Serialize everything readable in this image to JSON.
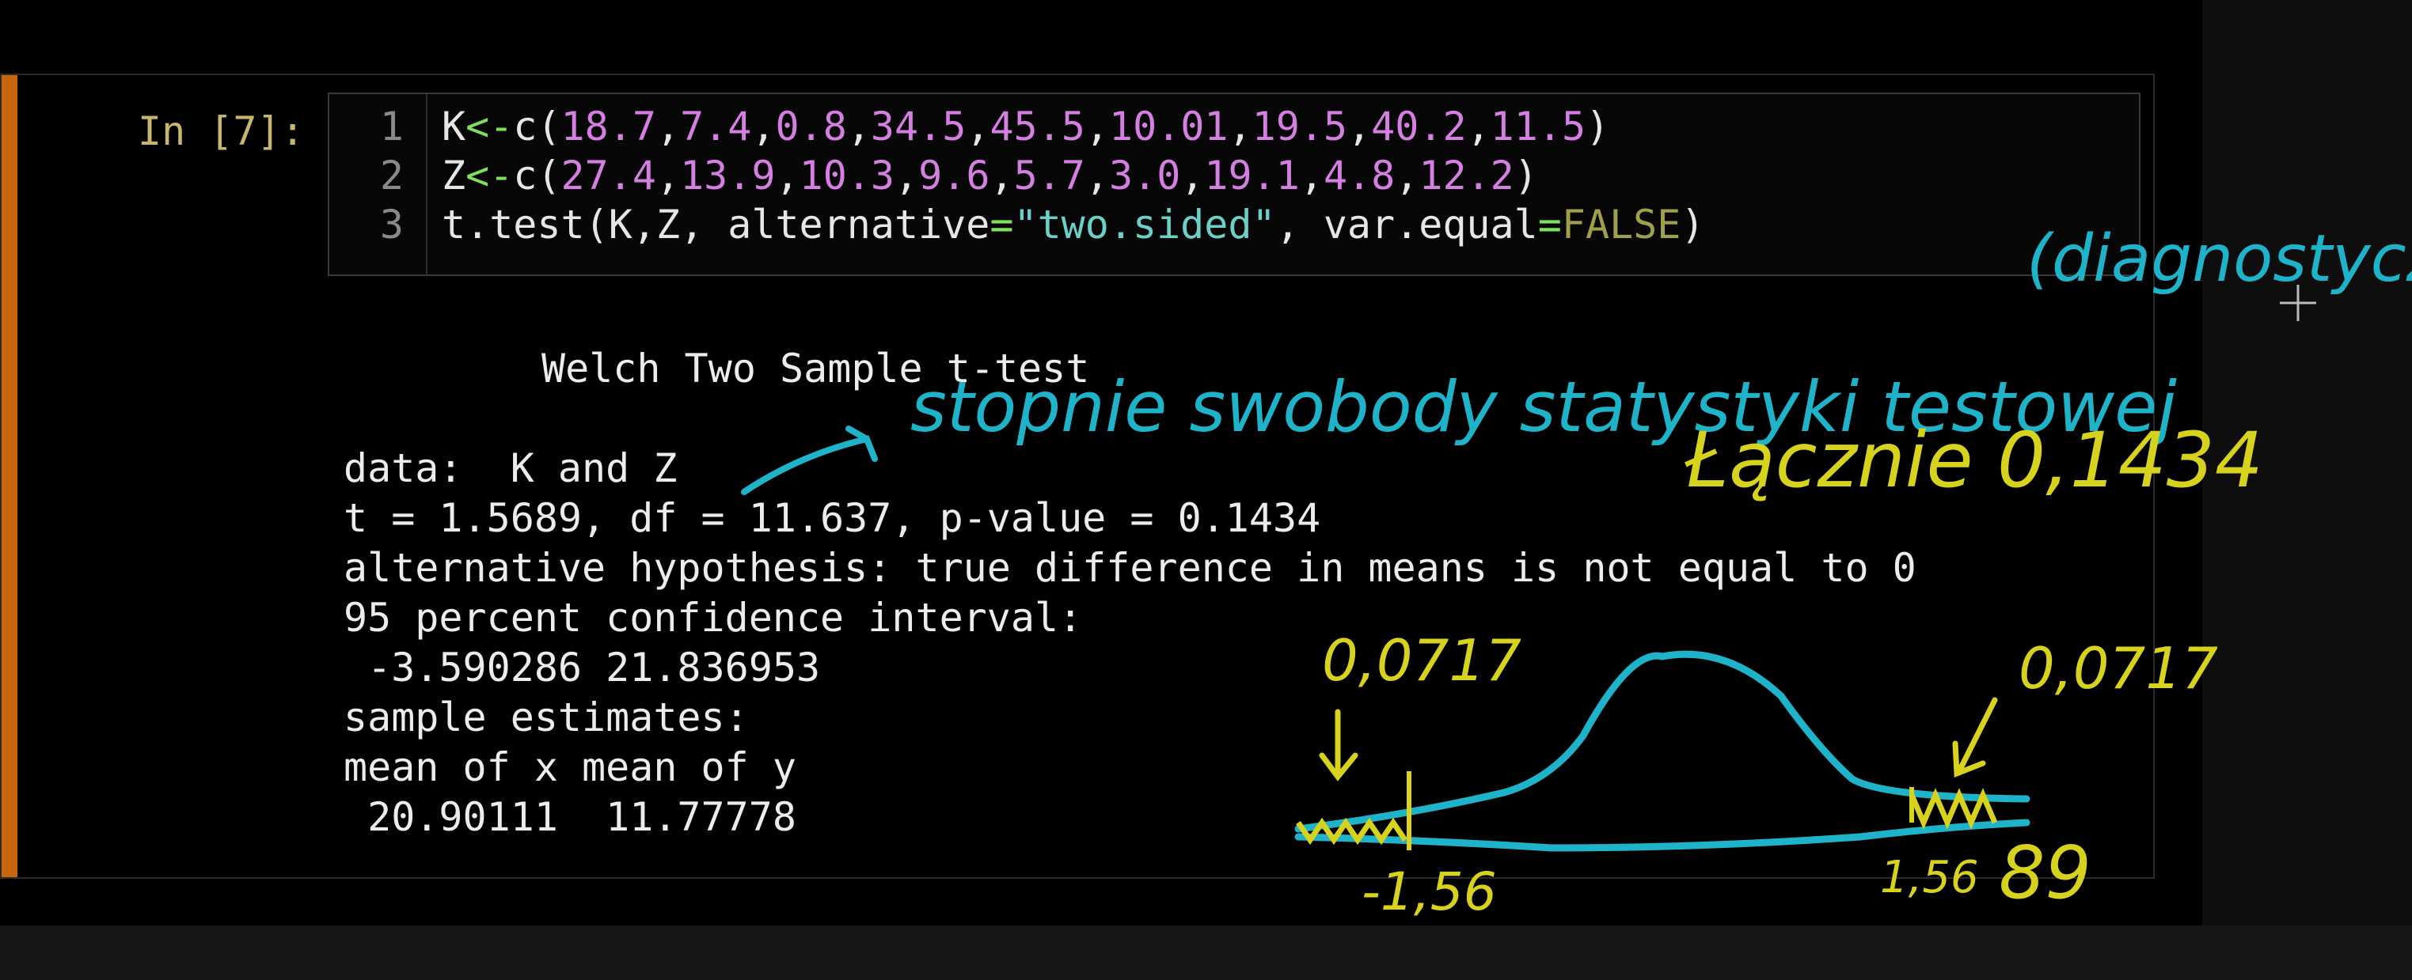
{
  "cell": {
    "prompt": "In [7]:",
    "code": {
      "line_numbers": [
        "1",
        "2",
        "3"
      ],
      "line1": {
        "var": "K",
        "assign": "<-",
        "fn": "c(",
        "values": [
          "18.7",
          "7.4",
          "0.8",
          "34.5",
          "45.5",
          "10.01",
          "19.5",
          "40.2",
          "11.5"
        ],
        "close": ")"
      },
      "line2": {
        "var": "Z",
        "assign": "<-",
        "fn": "c(",
        "values": [
          "27.4",
          "13.9",
          "10.3",
          "9.6",
          "5.7",
          "3.0",
          "19.1",
          "4.8",
          "12.2"
        ],
        "close": ")"
      },
      "line3": {
        "pre": "t.test(K,Z, alternative",
        "eq1": "=",
        "str": "\"two.sided\"",
        "mid": ", var.equal",
        "eq2": "=",
        "kw": "FALSE",
        "close": ")"
      }
    },
    "output": {
      "title": "Welch Two Sample t-test",
      "data_line": "data:  K and Z",
      "stats_line": "t = 1.5689, df = 11.637, p-value = 0.1434",
      "alt_line": "alternative hypothesis: true difference in means is not equal to 0",
      "ci_label": "95 percent confidence interval:",
      "ci_values": " -3.590286 21.836953",
      "est_label": "sample estimates:",
      "est_header": "mean of x mean of y",
      "est_values": " 20.90111  11.77778"
    }
  },
  "annotations": {
    "diagnostic": "(diagnostyczne)",
    "df_note": "stopnie swobody statystyki testowej",
    "p_note": "Łącznie 0,1434",
    "left_tail": "0,0717",
    "right_tail": "0,0717",
    "left_crit": "-1,56",
    "right_crit": "1,56",
    "right_extra": "89"
  },
  "colors": {
    "accent": "#c8650e",
    "prompt": "#c7b66b",
    "number": "#d67fe3",
    "operator": "#7ee05c",
    "string": "#6cd0c9",
    "keyword": "#a0a04a",
    "ink_blue": "#1fb3c9",
    "ink_yellow": "#d6d21e"
  }
}
